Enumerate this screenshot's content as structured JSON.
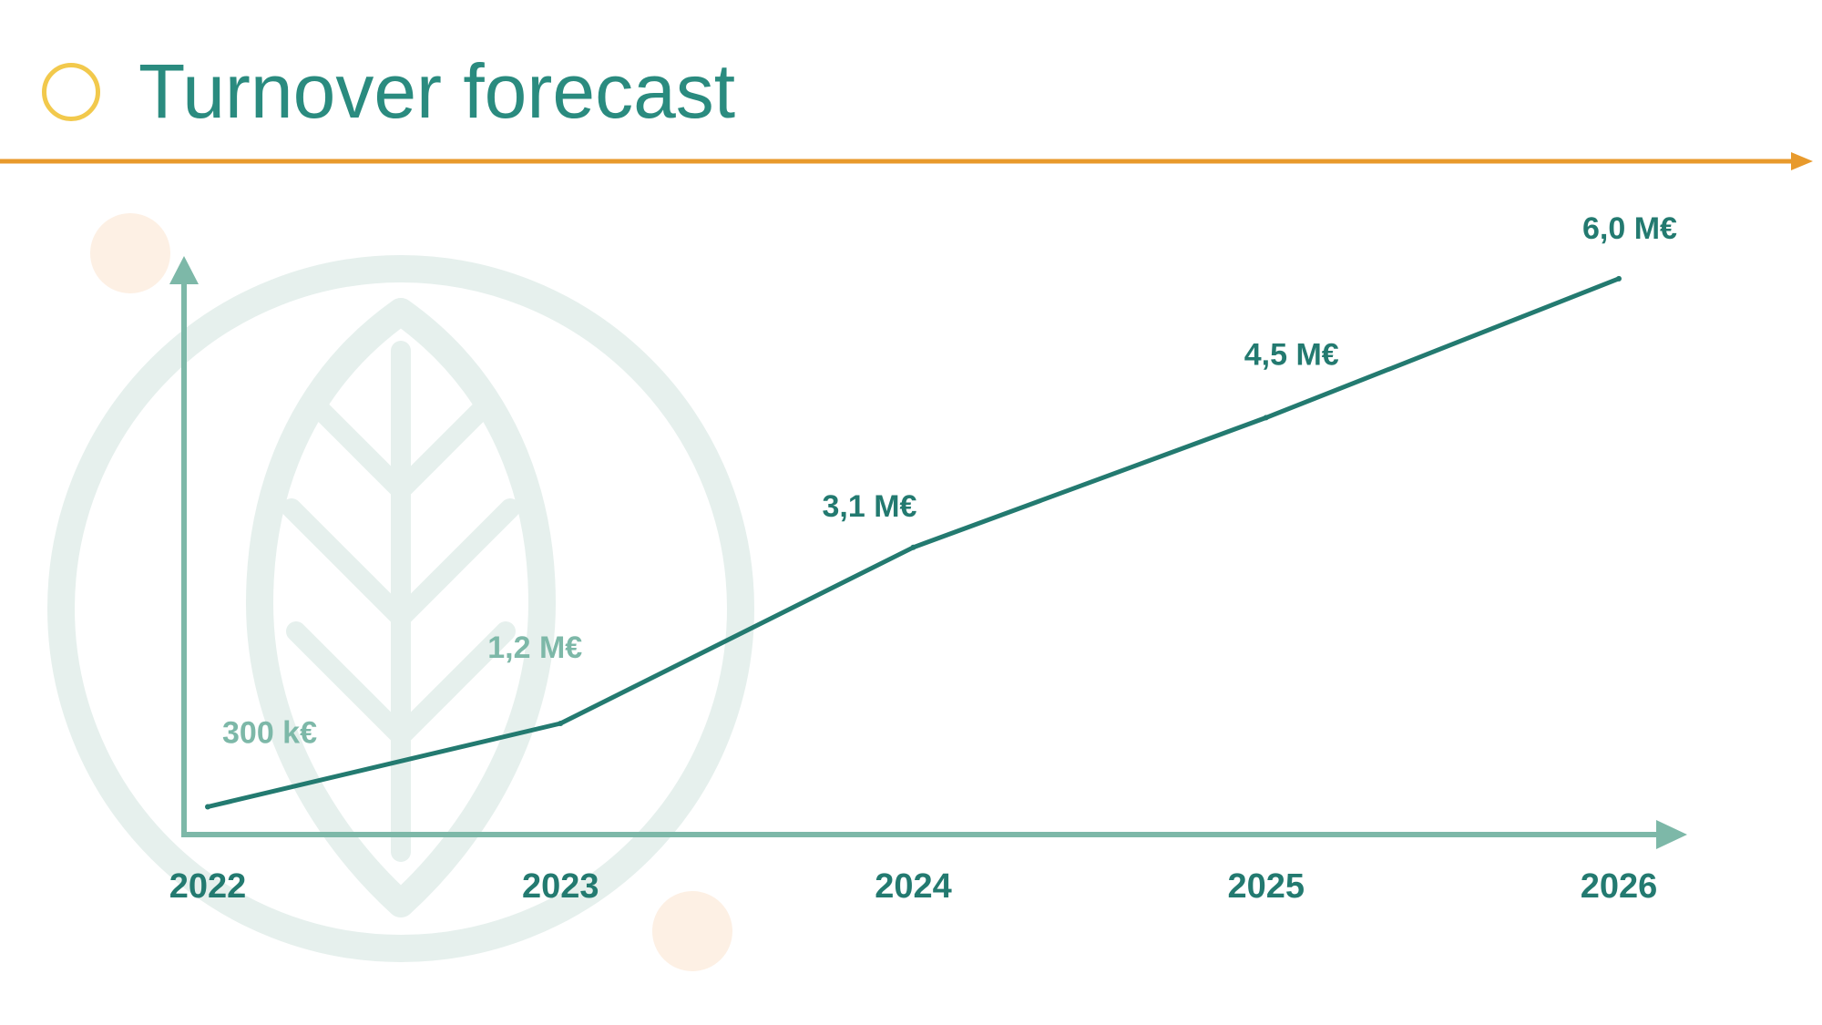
{
  "slide": {
    "title": "Turnover forecast"
  },
  "colors": {
    "title": "#2a8b7f",
    "title_circle": "#f2c94c",
    "header_rule": "#e89a2c",
    "axis": "#7db8a8",
    "line": "#237a70",
    "label_dark": "#237a70",
    "label_light": "#7db8a8",
    "watermark": "#e6f0ed",
    "dot_peach": "#fdf0e4"
  },
  "watermark": {
    "icon": "leaf-in-circle-icon"
  },
  "chart_data": {
    "type": "line",
    "categories": [
      "2022",
      "2023",
      "2024",
      "2025",
      "2026"
    ],
    "values": [
      0.3,
      1.2,
      3.1,
      4.5,
      6.0
    ],
    "data_labels": [
      "300 k€",
      "1,2 M€",
      "3,1 M€",
      "4,5 M€",
      "6,0 M€"
    ],
    "title": "",
    "xlabel": "",
    "ylabel": "",
    "ylim": [
      0,
      6.5
    ],
    "grid": false,
    "legend": "none"
  }
}
